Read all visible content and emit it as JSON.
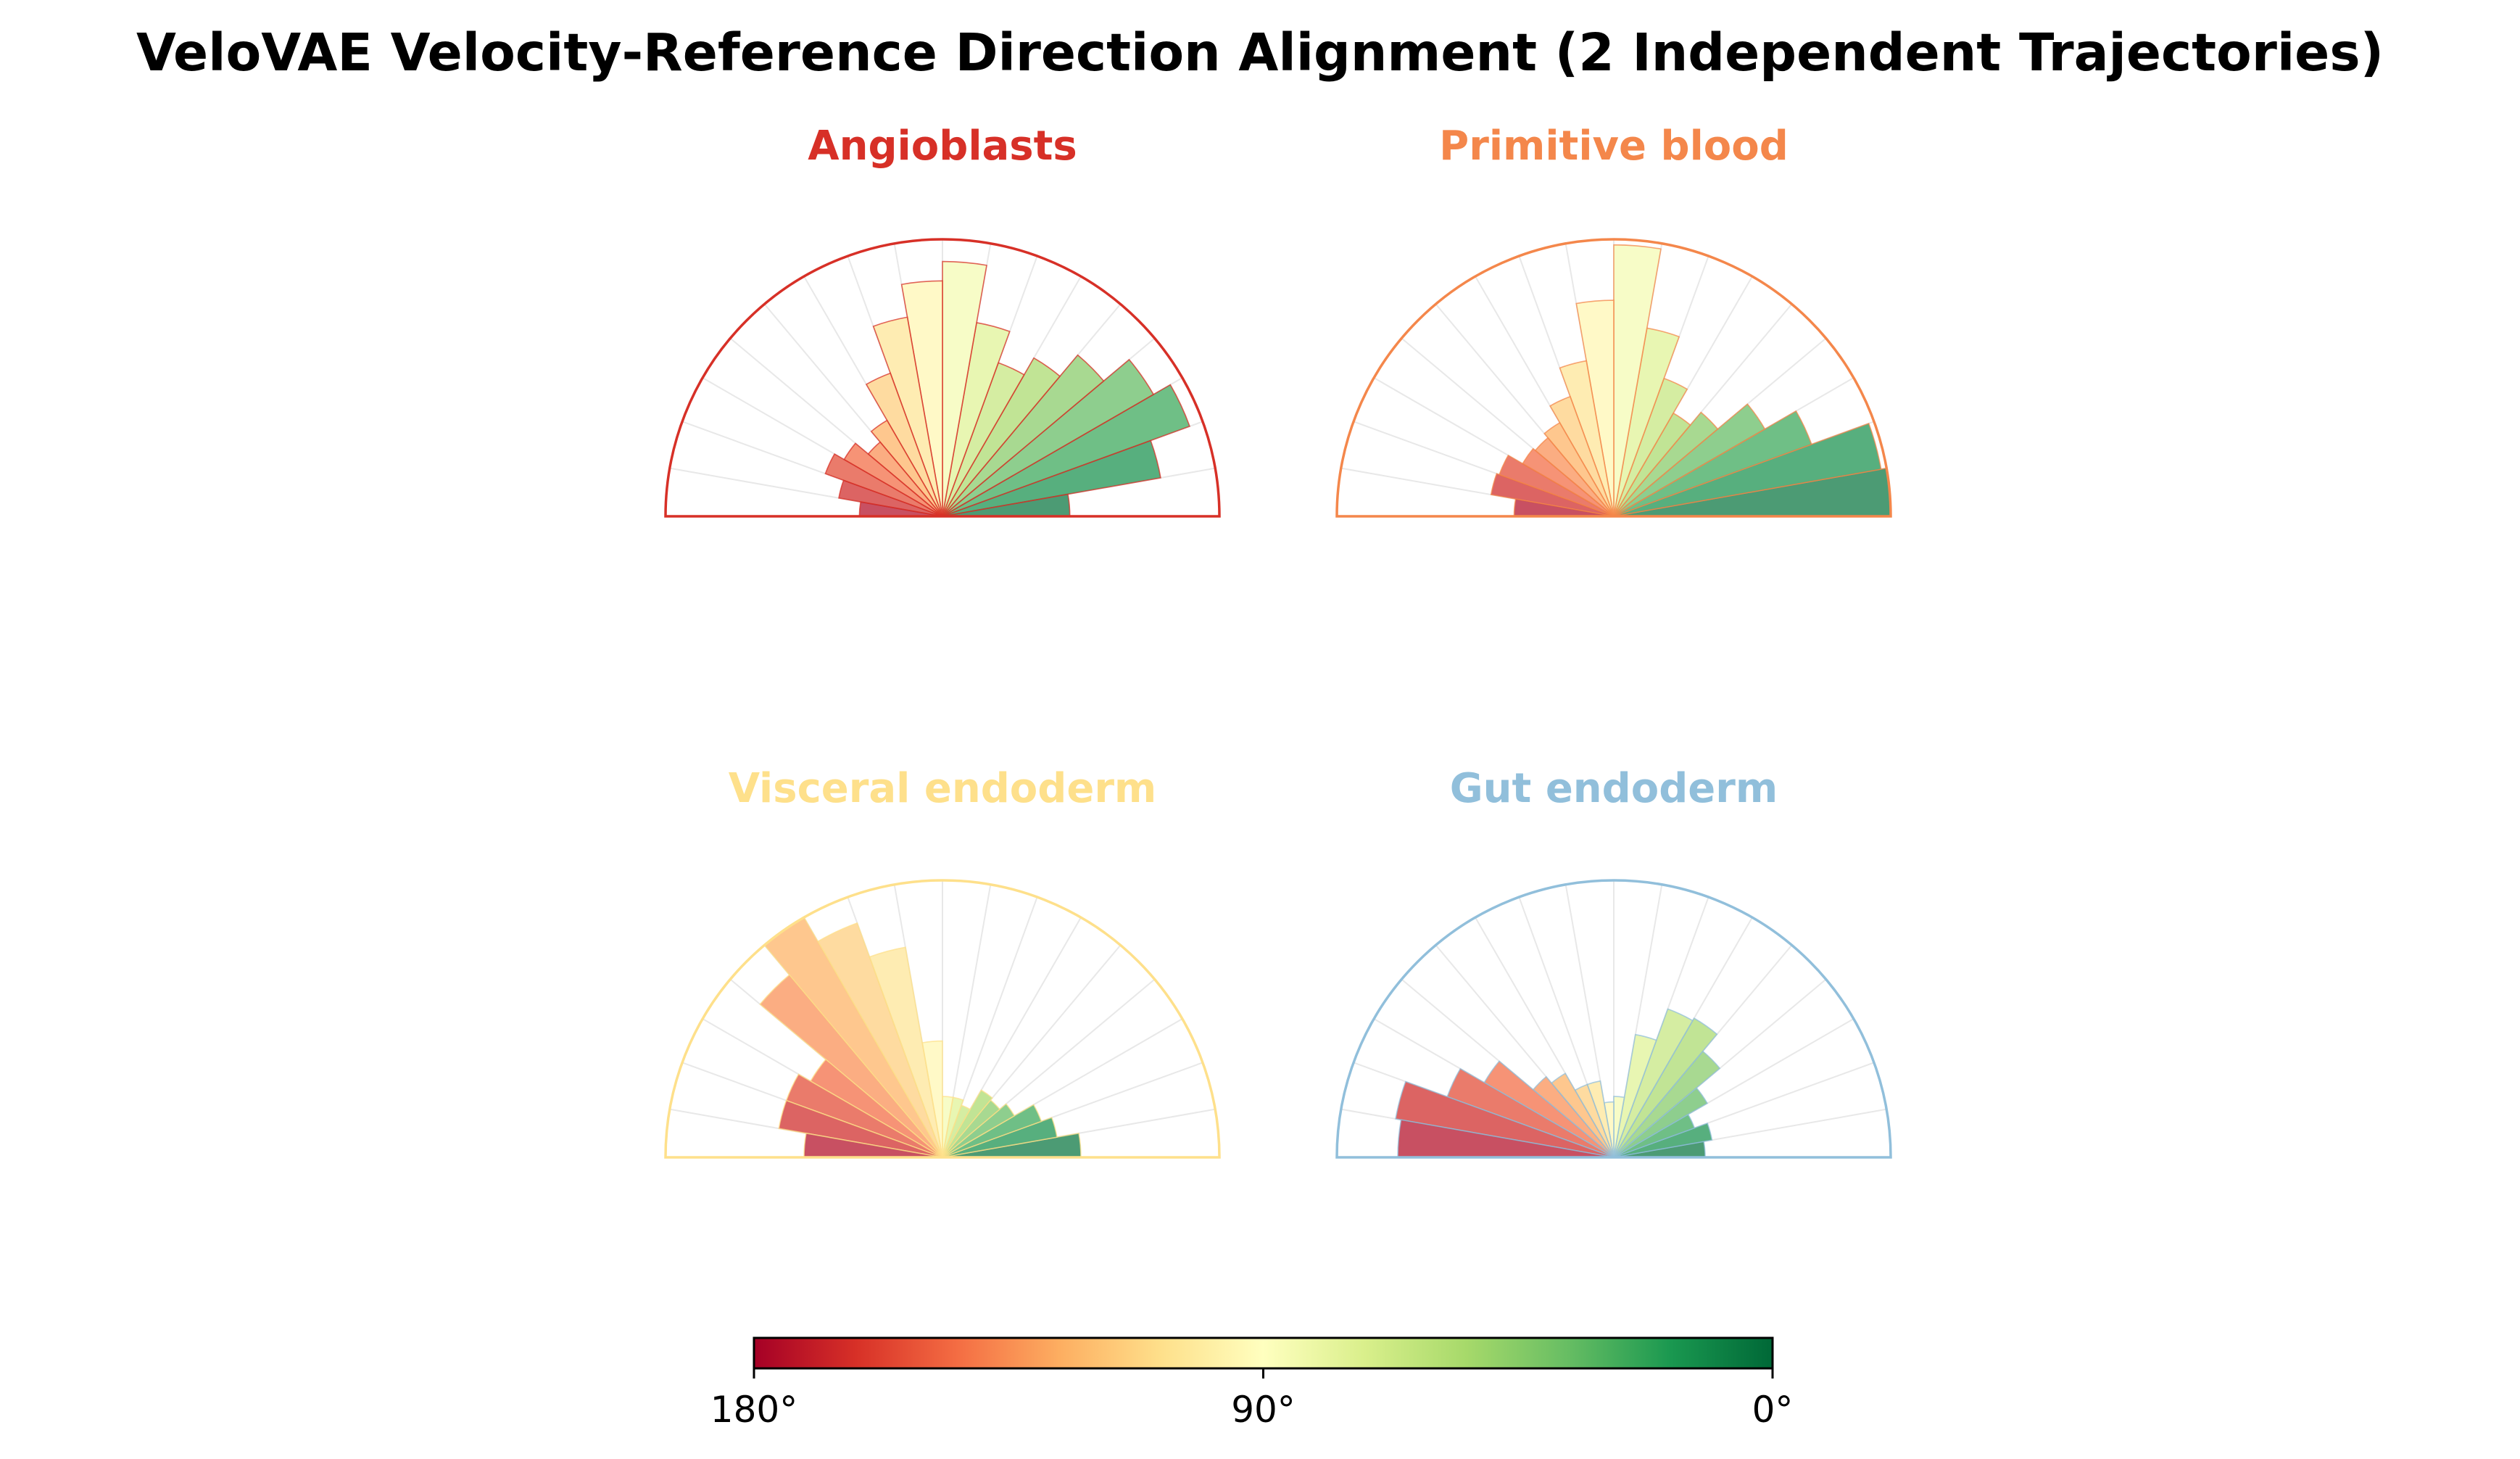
{
  "figure": {
    "title": "VeloVAE Velocity-Reference Direction Alignment (2 Independent Trajectories)"
  },
  "chart_data": [
    {
      "type": "polar-bar",
      "title": "Angioblasts",
      "title_color": "#d73027",
      "theta_range_deg": [
        0,
        180
      ],
      "bins": 18,
      "bin_width_deg": 10,
      "bin_centers_deg": [
        5,
        15,
        25,
        35,
        45,
        55,
        65,
        75,
        85,
        95,
        105,
        115,
        125,
        135,
        145,
        155,
        165,
        175
      ],
      "radii_relative": [
        0.46,
        0.8,
        0.95,
        0.88,
        0.76,
        0.66,
        0.59,
        0.71,
        0.92,
        0.85,
        0.73,
        0.55,
        0.4,
        0.35,
        0.41,
        0.45,
        0.38,
        0.3
      ]
    },
    {
      "type": "polar-bar",
      "title": "Primitive blood",
      "title_color": "#f4874b",
      "theta_range_deg": [
        0,
        180
      ],
      "bins": 18,
      "bin_width_deg": 10,
      "bin_centers_deg": [
        5,
        15,
        25,
        35,
        45,
        55,
        65,
        75,
        85,
        95,
        105,
        115,
        125,
        135,
        145,
        155,
        165,
        175
      ],
      "radii_relative": [
        1.0,
        0.98,
        0.76,
        0.63,
        0.49,
        0.43,
        0.53,
        0.69,
        0.98,
        0.78,
        0.57,
        0.46,
        0.39,
        0.37,
        0.38,
        0.44,
        0.45,
        0.36
      ]
    },
    {
      "type": "polar-bar",
      "title": "Visceral endoderm",
      "title_color": "#fee08b",
      "theta_range_deg": [
        0,
        180
      ],
      "bins": 18,
      "bin_width_deg": 10,
      "bin_centers_deg": [
        5,
        15,
        25,
        35,
        45,
        55,
        65,
        75,
        85,
        95,
        105,
        115,
        125,
        135,
        145,
        155,
        165,
        175
      ],
      "radii_relative": [
        0.5,
        0.42,
        0.38,
        0.3,
        0.27,
        0.28,
        0.2,
        0.22,
        0.22,
        0.42,
        0.77,
        0.9,
        1.0,
        0.86,
        0.55,
        0.6,
        0.6,
        0.5
      ]
    },
    {
      "type": "polar-bar",
      "title": "Gut endoderm",
      "title_color": "#91bfdb",
      "theta_range_deg": [
        0,
        180
      ],
      "bins": 18,
      "bin_width_deg": 10,
      "bin_centers_deg": [
        5,
        15,
        25,
        35,
        45,
        55,
        65,
        75,
        85,
        95,
        105,
        115,
        125,
        135,
        145,
        155,
        165,
        175
      ],
      "radii_relative": [
        0.33,
        0.36,
        0.31,
        0.39,
        0.5,
        0.58,
        0.57,
        0.45,
        0.22,
        0.2,
        0.28,
        0.28,
        0.35,
        0.38,
        0.54,
        0.64,
        0.8,
        0.78
      ]
    }
  ],
  "colorbar": {
    "colormap": "RdYlGn",
    "stops": [
      "#a50026",
      "#d73027",
      "#f46d43",
      "#fdae61",
      "#fee08b",
      "#ffffbf",
      "#d9ef8b",
      "#a6d96a",
      "#66bd63",
      "#1a9850",
      "#006837"
    ],
    "ticks": [
      {
        "label": "180°",
        "pos": 0
      },
      {
        "label": "90°",
        "pos": 0.5
      },
      {
        "label": "0°",
        "pos": 1
      }
    ]
  }
}
